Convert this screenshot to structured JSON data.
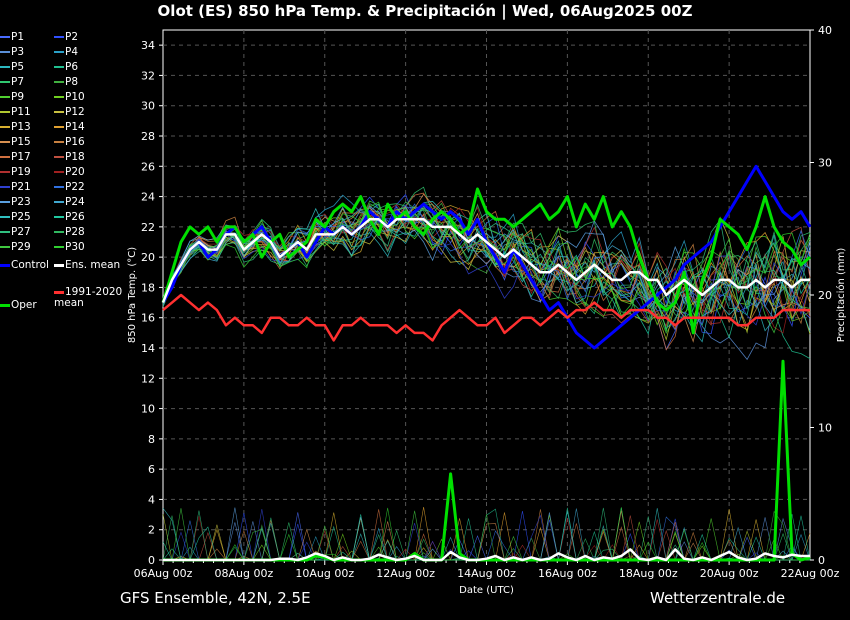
{
  "title": "Olot  (ES)  850 hPa Temp. & Precipitación | Wed, 06Aug2025 00Z",
  "footer": {
    "left": "GFS Ensemble, 42N, 2.5E",
    "right": "Wetterzentrale.de"
  },
  "colors": {
    "background": "#000000",
    "control": "#0000ff",
    "ens_mean": "#ffffff",
    "climate": "#ff3030",
    "oper": "#00e000"
  },
  "legend": [
    {
      "label": "P1",
      "color": "#4a6cff"
    },
    {
      "label": "P2",
      "color": "#3050ff"
    },
    {
      "label": "P3",
      "color": "#5a8fd8"
    },
    {
      "label": "P4",
      "color": "#2aa0c8"
    },
    {
      "label": "P5",
      "color": "#2cb8c0"
    },
    {
      "label": "P6",
      "color": "#20c090"
    },
    {
      "label": "P7",
      "color": "#30c870"
    },
    {
      "label": "P8",
      "color": "#40b040"
    },
    {
      "label": "P9",
      "color": "#50d030"
    },
    {
      "label": "P10",
      "color": "#70d020"
    },
    {
      "label": "P11",
      "color": "#b0c830"
    },
    {
      "label": "P12",
      "color": "#c8c040"
    },
    {
      "label": "P13",
      "color": "#d8b030"
    },
    {
      "label": "P14",
      "color": "#e0a030"
    },
    {
      "label": "P15",
      "color": "#d89050"
    },
    {
      "label": "P16",
      "color": "#c88040"
    },
    {
      "label": "P17",
      "color": "#d07040"
    },
    {
      "label": "P18",
      "color": "#c05040"
    },
    {
      "label": "P19",
      "color": "#b03030"
    },
    {
      "label": "P20",
      "color": "#a02020"
    },
    {
      "label": "P21",
      "color": "#3040d0"
    },
    {
      "label": "P22",
      "color": "#3070e0"
    },
    {
      "label": "P23",
      "color": "#5aa0e0"
    },
    {
      "label": "P24",
      "color": "#40a8d0"
    },
    {
      "label": "P25",
      "color": "#30c0c0"
    },
    {
      "label": "P26",
      "color": "#20c8a0"
    },
    {
      "label": "P27",
      "color": "#30c080"
    },
    {
      "label": "P28",
      "color": "#30b860"
    },
    {
      "label": "P29",
      "color": "#40c840"
    },
    {
      "label": "P30",
      "color": "#30d030"
    },
    {
      "label": "Control",
      "color": "#0000ff"
    },
    {
      "label": "Ens. mean",
      "color": "#ffffff"
    },
    {
      "label": "1991-2020 mean",
      "color": "#ff3030"
    },
    {
      "label": "Oper",
      "color": "#00e000"
    }
  ],
  "chart_data": {
    "type": "line",
    "title": "Olot  (ES)  850 hPa Temp. & Precipitación | Wed, 06Aug2025 00Z",
    "xlabel": "Date (UTC)",
    "ylabel": "850 hPa Temp. (°C)",
    "y2label": "Precipitación (mm)",
    "ylim": [
      0,
      35
    ],
    "y2lim": [
      0,
      40
    ],
    "yticks": [
      0,
      2,
      4,
      6,
      8,
      10,
      12,
      14,
      16,
      18,
      20,
      22,
      24,
      26,
      28,
      30,
      32,
      34
    ],
    "y2ticks": [
      0,
      10,
      20,
      30,
      40
    ],
    "xticks": [
      "06Aug 00z",
      "08Aug 00z",
      "10Aug 00z",
      "12Aug 00z",
      "14Aug 00z",
      "16Aug 00z",
      "18Aug 00z",
      "20Aug 00z",
      "22Aug 00z"
    ],
    "x_hours_step": 6,
    "grid": true,
    "series": [
      {
        "name": "Control",
        "axis": "temp",
        "values": [
          17,
          18,
          19.5,
          20.5,
          21,
          20,
          20.5,
          21.5,
          22,
          21,
          21.5,
          22,
          21,
          20,
          20.5,
          21,
          20,
          21,
          22,
          21.5,
          22,
          21.5,
          22,
          23,
          22.5,
          22,
          23,
          22.5,
          23,
          23.5,
          23,
          22.5,
          23,
          22.5,
          21.5,
          22.5,
          21,
          20,
          19,
          20.5,
          19.5,
          18.5,
          17.5,
          16.5,
          17,
          16,
          15,
          14.5,
          14,
          14.5,
          15,
          15.5,
          16,
          16.5,
          17,
          17.5,
          18,
          18.5,
          19.5,
          20,
          20.5,
          21,
          22,
          23,
          24,
          25,
          26,
          25,
          24,
          23,
          22.5,
          23,
          22
        ]
      },
      {
        "name": "Oper",
        "axis": "temp",
        "values": [
          17,
          19,
          21,
          22,
          21.5,
          22,
          21,
          22,
          22,
          21,
          21.5,
          20,
          21,
          21.5,
          20,
          20.5,
          21,
          22.5,
          22,
          23,
          23.5,
          23,
          24,
          22.5,
          21.5,
          23.5,
          22.5,
          23,
          22,
          21.5,
          22.5,
          23,
          22.5,
          21.5,
          22,
          24.5,
          23,
          22.5,
          22.5,
          22,
          22.5,
          23,
          23.5,
          22.5,
          23,
          24,
          22,
          23.5,
          22.5,
          24,
          22,
          23,
          22,
          20,
          18.5,
          17,
          16.5,
          17,
          19,
          15,
          18.5,
          20,
          22.5,
          22,
          21.5,
          20.5,
          22,
          24,
          22,
          21,
          20.5,
          19.5,
          20
        ]
      },
      {
        "name": "Ens. mean",
        "axis": "temp",
        "values": [
          17,
          18.5,
          19.5,
          20.5,
          21,
          20.5,
          20.5,
          21.5,
          21.5,
          20.5,
          21,
          21.5,
          21,
          20,
          20.5,
          21,
          20.5,
          21.5,
          21.5,
          21.5,
          22,
          21.5,
          22,
          22.5,
          22.5,
          22,
          22.5,
          22.5,
          22.5,
          22.5,
          22,
          22,
          22,
          21.5,
          21,
          21.5,
          21,
          20.5,
          20,
          20.5,
          20,
          19.5,
          19,
          19,
          19.5,
          19,
          18.5,
          19,
          19.5,
          19,
          18.5,
          18.5,
          19,
          19,
          18.5,
          18.5,
          17.5,
          18,
          18.5,
          18,
          17.5,
          18,
          18.5,
          18.5,
          18,
          18,
          18.5,
          18,
          18.5,
          18.5,
          18,
          18.5,
          18.5
        ]
      },
      {
        "name": "1991-2020 mean",
        "axis": "temp",
        "values": [
          16.5,
          17,
          17.5,
          17,
          16.5,
          17,
          16.5,
          15.5,
          16,
          15.5,
          15.5,
          15,
          16,
          16,
          15.5,
          15.5,
          16,
          15.5,
          15.5,
          14.5,
          15.5,
          15.5,
          16,
          15.5,
          15.5,
          15.5,
          15,
          15.5,
          15,
          15,
          14.5,
          15.5,
          16,
          16.5,
          16,
          15.5,
          15.5,
          16,
          15,
          15.5,
          16,
          16,
          15.5,
          16,
          16.5,
          16,
          16.5,
          16.5,
          17,
          16.5,
          16.5,
          16,
          16.5,
          16.5,
          16.5,
          16,
          16,
          15.5,
          16,
          16,
          16,
          16,
          16,
          16,
          15.5,
          15.5,
          16,
          16,
          16,
          16.5,
          16.5,
          16.5,
          16.5
        ]
      },
      {
        "name": "Oper precip",
        "axis": "precip",
        "values": [
          0,
          0,
          0,
          0,
          0,
          0,
          0,
          0,
          0,
          0,
          0,
          0,
          0,
          0,
          0,
          0,
          0,
          0.3,
          0.2,
          0,
          0,
          0,
          0,
          0,
          0,
          0,
          0,
          0,
          0.5,
          0,
          0,
          0,
          6.5,
          0.5,
          0,
          0,
          0,
          0,
          0,
          0,
          0,
          0,
          0,
          0,
          0,
          0,
          0,
          0,
          0,
          0,
          0,
          0,
          0,
          0,
          0,
          0,
          0,
          0,
          0,
          0,
          0,
          0,
          0,
          0,
          0,
          0,
          0,
          0,
          0,
          15,
          0.5,
          0,
          0.2
        ]
      },
      {
        "name": "Ens. mean precip",
        "axis": "precip",
        "values": [
          0,
          0,
          0,
          0,
          0,
          0,
          0,
          0,
          0,
          0,
          0,
          0,
          0,
          0.1,
          0.1,
          0,
          0.2,
          0.5,
          0.3,
          0,
          0.2,
          0,
          0,
          0.1,
          0.4,
          0.2,
          0,
          0.1,
          0.3,
          0,
          0,
          0,
          0.6,
          0.2,
          0,
          0,
          0.1,
          0.3,
          0,
          0.2,
          0,
          0.2,
          0,
          0.1,
          0.5,
          0.2,
          0,
          0.3,
          0,
          0.2,
          0.1,
          0.3,
          0.8,
          0.1,
          0,
          0.2,
          0,
          0.8,
          0.1,
          0,
          0.2,
          0,
          0.3,
          0.6,
          0.2,
          0,
          0.1,
          0.5,
          0.3,
          0.2,
          0.4,
          0.3,
          0.3
        ]
      }
    ]
  }
}
